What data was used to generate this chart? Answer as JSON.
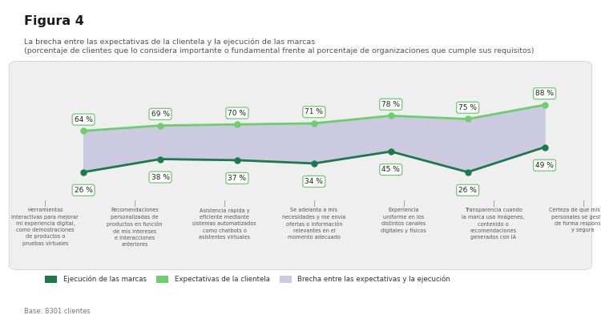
{
  "title": "Figura 4",
  "subtitle_line1": "La brecha entre las expectativas de la clientela y la ejecución de las marcas",
  "subtitle_line2": "(porcentaje de clientes que lo considera importante o fundamental frente al porcentaje de organizaciones que cumple sus requisitos)",
  "categories": [
    "Herramientas\ninteractivas para mejorar\nmi experiencia digital,\ncomo demostraciones\nde productos o\npruebas virtuales",
    "Recomendaciones\npersonalizadas de\nproductos en función\nde mis intereses\ne interacciones\nanteriores",
    "Asistencia rápida y\neficiente mediante\nsistemas automatizados\ncomo chatbots o\nasistentes virtuales",
    "Se adelanta a mis\nnecesidades y me envía\nofertas o información\nrelevantes en el\nmomento adecuado",
    "Experiencia\nuniforme en los\ndistintos canales\ndigitales y físicos",
    "Transparencia cuando\nla marca usa imágenes,\ncontenido o\nrecomendaciones\ngenerados con IA",
    "Certeza de que mis datos\npersonales se gestionan\nde forma responsable\ny segura"
  ],
  "brand_execution": [
    26,
    38,
    37,
    34,
    45,
    26,
    49
  ],
  "customer_expectations": [
    64,
    69,
    70,
    71,
    78,
    75,
    88
  ],
  "brand_color": "#1a7a4a",
  "expectation_color": "#6dce6d",
  "fill_color": "#cccae0",
  "background_color": "#efefef",
  "outer_background": "#ffffff",
  "legend_labels": [
    "Ejecución de las marcas",
    "Expectativas de la clientela",
    "Brecha entre las expectativas y la ejecución"
  ],
  "base_note": "Base: 8301 clientes",
  "ylim": [
    0,
    110
  ]
}
